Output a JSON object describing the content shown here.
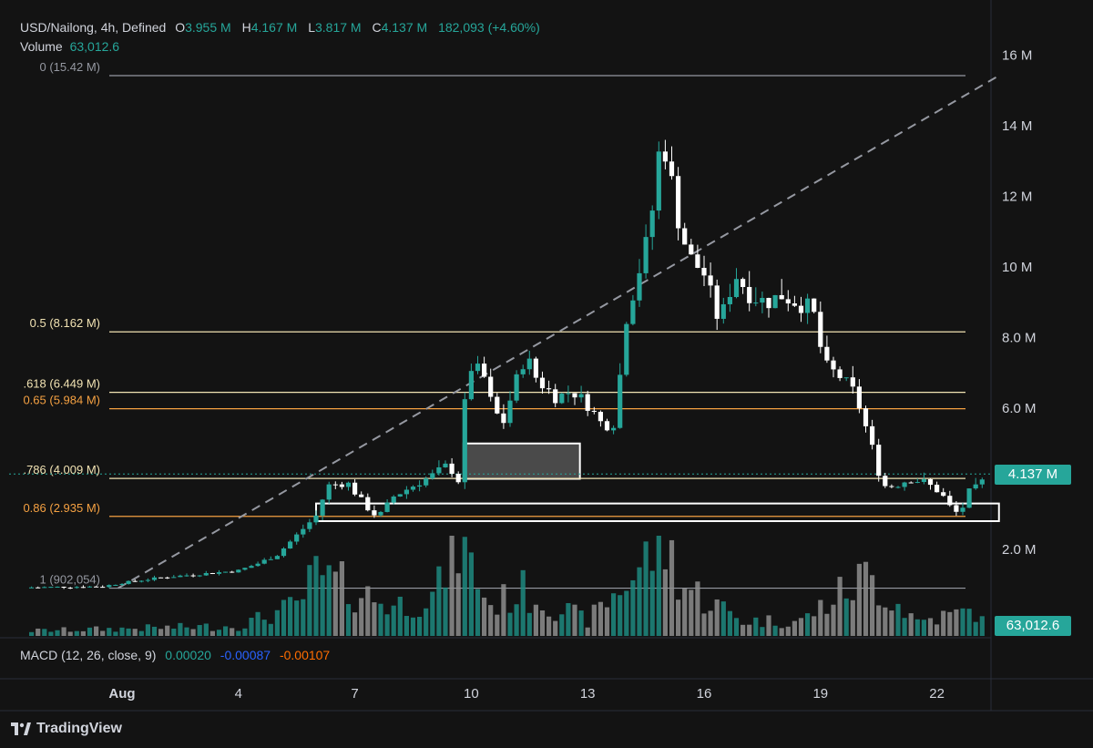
{
  "header": {
    "symbol": "USD/Nailong, 4h, Defined",
    "ohlc": [
      {
        "key": "O",
        "value": "3.955 M"
      },
      {
        "key": "H",
        "value": "4.167 M"
      },
      {
        "key": "L",
        "value": "3.817 M"
      },
      {
        "key": "C",
        "value": "4.137 M"
      }
    ],
    "change": "182,093 (+4.60%)",
    "volume_label": "Volume",
    "volume_value": "63,012.6"
  },
  "macd": {
    "label": "MACD (12, 26, close, 9)",
    "values": [
      {
        "value": "0.00020",
        "color": "#26a69a"
      },
      {
        "value": "-0.00087",
        "color": "#2962ff"
      },
      {
        "value": "-0.00107",
        "color": "#ff6d00"
      }
    ]
  },
  "price_tag": "4.137 M",
  "volume_tag": "63,012.6",
  "brand": "TradingView",
  "colors": {
    "bull": "#26a69a",
    "bear": "#ffffff",
    "background": "#131313",
    "fib_light": "#f2e3b3",
    "fib_orange": "#f5a142",
    "grey_line": "#9598a1"
  },
  "chart_data": {
    "type": "candlestick",
    "yaxis_ticks": [
      "16 M",
      "14 M",
      "12 M",
      "10 M",
      "8.0 M",
      "6.0 M",
      "2.0 M"
    ],
    "ylim_millions": [
      0,
      17
    ],
    "xaxis_ticks": [
      "Aug",
      "4",
      "7",
      "10",
      "13",
      "16",
      "19",
      "22"
    ],
    "fib_levels": [
      {
        "label": "0 (15.42 M)",
        "value": 15.42,
        "color": "#9598a1"
      },
      {
        "label": "0.5 (8.162 M)",
        "value": 8.162,
        "color": "#f2e3b3"
      },
      {
        "label": ".618 (6.449 M)",
        "value": 6.449,
        "color": "#f2e3b3"
      },
      {
        "label": "0.65 (5.984 M)",
        "value": 5.984,
        "color": "#f5a142"
      },
      {
        "label": ".786 (4.009 M)",
        "value": 4.009,
        "color": "#f2e3b3"
      },
      {
        "label": "0.86 (2.935 M)",
        "value": 2.935,
        "color": "#f5a142"
      },
      {
        "label": "1 (902,054)",
        "value": 0.902,
        "color": "#9598a1"
      }
    ],
    "zones": [
      {
        "name": "upper-box",
        "from_day": 8.8,
        "to_day": 11.8,
        "low": 4.0,
        "high": 5.0,
        "fill": "#4a4a4a"
      },
      {
        "name": "lower-box",
        "from_day": 5.0,
        "to_day": 22.6,
        "low": 2.8,
        "high": 3.3,
        "fill": "none"
      }
    ],
    "trendline": {
      "from": [
        -0.1,
        0.902
      ],
      "to": [
        22.6,
        15.42
      ]
    },
    "last_price": 4.137,
    "series": [
      {
        "name": "price",
        "anchors": [
          [
            -2.5,
            0.92
          ],
          [
            -0.5,
            0.95
          ],
          [
            0,
            1.05
          ],
          [
            1,
            1.2
          ],
          [
            2,
            1.3
          ],
          [
            3,
            1.4
          ],
          [
            3.5,
            1.6
          ],
          [
            4,
            1.85
          ],
          [
            4.5,
            2.4
          ],
          [
            5,
            2.95
          ],
          [
            5.3,
            3.8
          ],
          [
            5.8,
            3.9
          ],
          [
            6.3,
            3.2
          ],
          [
            6.6,
            2.9
          ],
          [
            7,
            3.5
          ],
          [
            7.5,
            3.8
          ],
          [
            8,
            4.1
          ],
          [
            8.4,
            4.4
          ],
          [
            8.7,
            3.9
          ],
          [
            8.9,
            7.2
          ],
          [
            9.3,
            7.0
          ],
          [
            9.5,
            6.2
          ],
          [
            9.8,
            5.5
          ],
          [
            10.1,
            6.6
          ],
          [
            10.4,
            7.5
          ],
          [
            10.7,
            6.8
          ],
          [
            11.2,
            6.3
          ],
          [
            11.6,
            6.5
          ],
          [
            12,
            6.1
          ],
          [
            12.4,
            5.5
          ],
          [
            12.7,
            5.6
          ],
          [
            13,
            8.6
          ],
          [
            13.4,
            10.2
          ],
          [
            13.6,
            11.0
          ],
          [
            13.9,
            13.8
          ],
          [
            14.1,
            12.8
          ],
          [
            14.3,
            11.5
          ],
          [
            14.6,
            10.3
          ],
          [
            15,
            9.8
          ],
          [
            15.4,
            8.4
          ],
          [
            15.8,
            9.8
          ],
          [
            16.2,
            9.2
          ],
          [
            16.6,
            9.0
          ],
          [
            17,
            9.2
          ],
          [
            17.4,
            9.0
          ],
          [
            17.8,
            8.8
          ],
          [
            18.1,
            7.2
          ],
          [
            18.5,
            6.9
          ],
          [
            18.9,
            6.4
          ],
          [
            19.3,
            5.0
          ],
          [
            19.6,
            3.8
          ],
          [
            19.9,
            3.8
          ],
          [
            20.3,
            4.0
          ],
          [
            20.7,
            3.9
          ],
          [
            21.1,
            3.6
          ],
          [
            21.4,
            3.1
          ],
          [
            21.6,
            3.0
          ],
          [
            21.8,
            3.6
          ],
          [
            22.1,
            3.8
          ],
          [
            22.3,
            4.137
          ]
        ]
      },
      {
        "name": "volume",
        "anchors": [
          [
            -2.5,
            0.05
          ],
          [
            3,
            0.1
          ],
          [
            4.5,
            0.3
          ],
          [
            5,
            0.6
          ],
          [
            7,
            0.3
          ],
          [
            8.1,
            0.4
          ],
          [
            8.6,
            1.0
          ],
          [
            9.5,
            0.3
          ],
          [
            10.3,
            0.45
          ],
          [
            12,
            0.15
          ],
          [
            13.4,
            0.7
          ],
          [
            13.9,
            1.0
          ],
          [
            14.5,
            0.5
          ],
          [
            16,
            0.15
          ],
          [
            17.5,
            0.15
          ],
          [
            19.2,
            0.6
          ],
          [
            20.5,
            0.15
          ],
          [
            22,
            0.25
          ],
          [
            22.3,
            0.05
          ]
        ]
      }
    ]
  }
}
